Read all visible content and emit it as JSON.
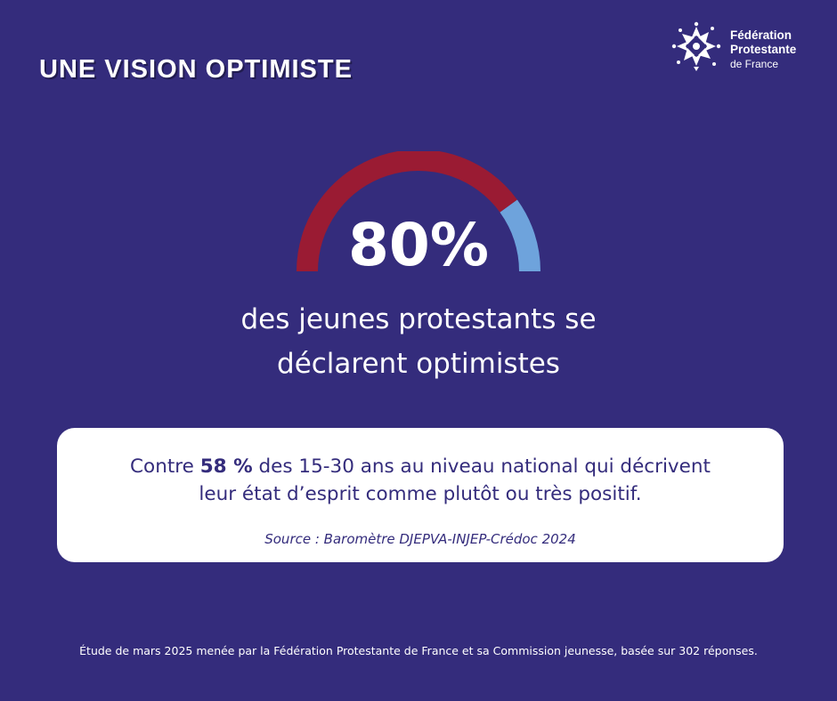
{
  "header": {
    "title": "UNE VISION OPTIMISTE"
  },
  "logo": {
    "line1": "Fédération",
    "line2": "Protestante",
    "line3": "de France",
    "icon": "huguenot-cross-icon"
  },
  "gauge": {
    "value_percent": 80,
    "color_filled": "#9a1b33",
    "color_rest": "#6ea3dc",
    "label": "80%"
  },
  "headline": {
    "line1": "des jeunes protestants se",
    "line2": "déclarent optimistes"
  },
  "card": {
    "text_before": "Contre ",
    "highlight": "58 %",
    "text_after": " des 15-30 ans au niveau national qui décrivent",
    "text_line2": "leur état d’esprit comme plutôt ou très positif.",
    "source": "Source : Baromètre DJEPVA-INJEP-Crédoc 2024"
  },
  "footer": {
    "text": "Étude de mars 2025 menée par la Fédération Protestante de France et sa Commission jeunesse, basée sur 302 réponses."
  },
  "colors": {
    "background": "#342c7c",
    "card": "#ffffff",
    "card_text": "#342c7c"
  }
}
